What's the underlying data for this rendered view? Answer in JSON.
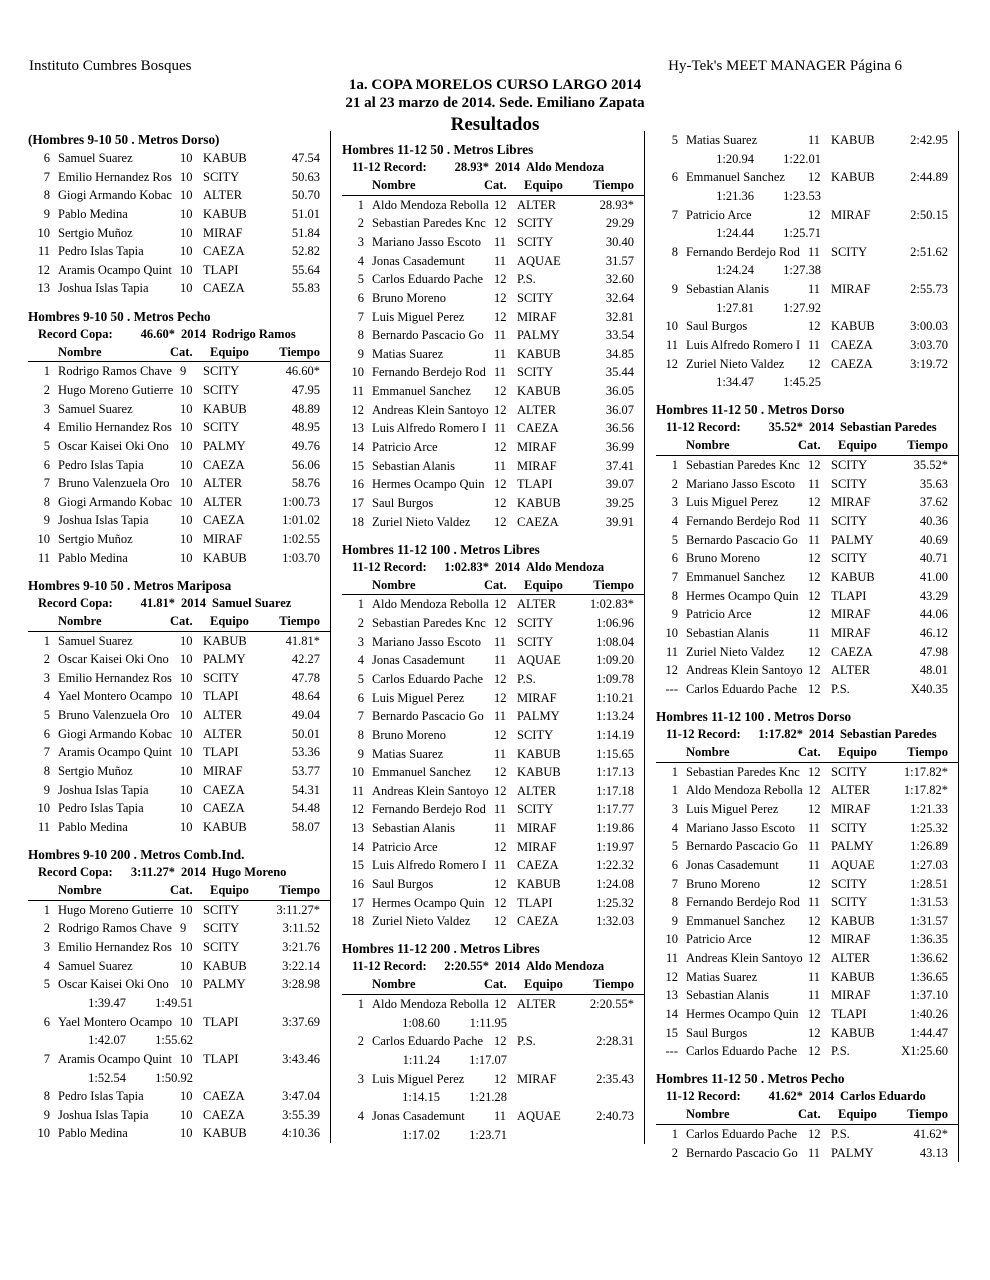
{
  "header": {
    "left": "Instituto Cumbres Bosques",
    "right": "Hy-Tek's MEET MANAGER  Página 6",
    "title": "1a. COPA MORELOS CURSO LARGO 2014",
    "subtitle": "21 al 23 marzo de 2014. Sede. Emiliano Zapata",
    "heading": "Resultados"
  },
  "table_header": [
    "Nombre",
    "Cat.",
    "Equipo",
    "Tiempo"
  ],
  "columns": [
    [
      {
        "title": "(Hombres 9-10 50 . Metros Dorso)",
        "rows": [
          [
            6,
            "Samuel Suarez",
            10,
            "KABUB",
            "47.54"
          ],
          [
            7,
            "Emilio Hernandez Ros",
            10,
            "SCITY",
            "50.63"
          ],
          [
            8,
            "Giogi Armando Kobac",
            10,
            "ALTER",
            "50.70"
          ],
          [
            9,
            "Pablo Medina",
            10,
            "KABUB",
            "51.01"
          ],
          [
            10,
            "Sertgio Muñoz",
            10,
            "MIRAF",
            "51.84"
          ],
          [
            11,
            "Pedro Islas Tapia",
            10,
            "CAEZA",
            "52.82"
          ],
          [
            12,
            "Aramis Ocampo Quint",
            10,
            "TLAPI",
            "55.64"
          ],
          [
            13,
            "Joshua Islas Tapia",
            10,
            "CAEZA",
            "55.83"
          ]
        ]
      },
      {
        "title": "Hombres 9-10 50 . Metros Pecho",
        "record": {
          "label": "Record Copa:",
          "time": "46.60*",
          "year": "2014",
          "holder": "Rodrigo Ramos"
        },
        "rows": [
          [
            1,
            "Rodrigo Ramos Chave",
            9,
            "SCITY",
            "46.60*"
          ],
          [
            2,
            "Hugo Moreno Gutierre",
            10,
            "SCITY",
            "47.95"
          ],
          [
            3,
            "Samuel Suarez",
            10,
            "KABUB",
            "48.89"
          ],
          [
            4,
            "Emilio Hernandez Ros",
            10,
            "SCITY",
            "48.95"
          ],
          [
            5,
            "Oscar Kaisei Oki Ono",
            10,
            "PALMY",
            "49.76"
          ],
          [
            6,
            "Pedro Islas Tapia",
            10,
            "CAEZA",
            "56.06"
          ],
          [
            7,
            "Bruno Valenzuela Oro",
            10,
            "ALTER",
            "58.76"
          ],
          [
            8,
            "Giogi Armando Kobac",
            10,
            "ALTER",
            "1:00.73"
          ],
          [
            9,
            "Joshua Islas Tapia",
            10,
            "CAEZA",
            "1:01.02"
          ],
          [
            10,
            "Sertgio Muñoz",
            10,
            "MIRAF",
            "1:02.55"
          ],
          [
            11,
            "Pablo Medina",
            10,
            "KABUB",
            "1:03.70"
          ]
        ]
      },
      {
        "title": "Hombres 9-10 50 . Metros Mariposa",
        "record": {
          "label": "Record Copa:",
          "time": "41.81*",
          "year": "2014",
          "holder": "Samuel Suarez"
        },
        "rows": [
          [
            1,
            "Samuel Suarez",
            10,
            "KABUB",
            "41.81*"
          ],
          [
            2,
            "Oscar Kaisei Oki Ono",
            10,
            "PALMY",
            "42.27"
          ],
          [
            3,
            "Emilio Hernandez Ros",
            10,
            "SCITY",
            "47.78"
          ],
          [
            4,
            "Yael Montero Ocampo",
            10,
            "TLAPI",
            "48.64"
          ],
          [
            5,
            "Bruno Valenzuela Oro",
            10,
            "ALTER",
            "49.04"
          ],
          [
            6,
            "Giogi Armando Kobac",
            10,
            "ALTER",
            "50.01"
          ],
          [
            7,
            "Aramis Ocampo Quint",
            10,
            "TLAPI",
            "53.36"
          ],
          [
            8,
            "Sertgio Muñoz",
            10,
            "MIRAF",
            "53.77"
          ],
          [
            9,
            "Joshua Islas Tapia",
            10,
            "CAEZA",
            "54.31"
          ],
          [
            10,
            "Pedro Islas Tapia",
            10,
            "CAEZA",
            "54.48"
          ],
          [
            11,
            "Pablo Medina",
            10,
            "KABUB",
            "58.07"
          ]
        ]
      },
      {
        "title": "Hombres 9-10 200 . Metros Comb.Ind.",
        "record": {
          "label": "Record Copa:",
          "time": "3:11.27*",
          "year": "2014",
          "holder": "Hugo Moreno"
        },
        "rows": [
          [
            1,
            "Hugo Moreno Gutierre",
            10,
            "SCITY",
            "3:11.27*"
          ],
          [
            2,
            "Rodrigo Ramos Chave",
            9,
            "SCITY",
            "3:11.52"
          ],
          [
            3,
            "Emilio Hernandez Ros",
            10,
            "SCITY",
            "3:21.76"
          ],
          [
            4,
            "Samuel Suarez",
            10,
            "KABUB",
            "3:22.14"
          ],
          [
            5,
            "Oscar Kaisei Oki Ono",
            10,
            "PALMY",
            "3:28.98",
            [
              "1:39.47",
              "1:49.51"
            ]
          ],
          [
            6,
            "Yael Montero Ocampo",
            10,
            "TLAPI",
            "3:37.69",
            [
              "1:42.07",
              "1:55.62"
            ]
          ],
          [
            7,
            "Aramis Ocampo Quint",
            10,
            "TLAPI",
            "3:43.46",
            [
              "1:52.54",
              "1:50.92"
            ]
          ],
          [
            8,
            "Pedro Islas Tapia",
            10,
            "CAEZA",
            "3:47.04"
          ],
          [
            9,
            "Joshua Islas Tapia",
            10,
            "CAEZA",
            "3:55.39"
          ],
          [
            10,
            "Pablo Medina",
            10,
            "KABUB",
            "4:10.36"
          ]
        ]
      }
    ],
    [
      {
        "title": "Hombres 11-12 50 . Metros Libres",
        "record": {
          "label": "11-12 Record:",
          "time": "28.93*",
          "year": "2014",
          "holder": "Aldo Mendoza"
        },
        "rows": [
          [
            1,
            "Aldo Mendoza Rebolla",
            12,
            "ALTER",
            "28.93*"
          ],
          [
            2,
            "Sebastian Paredes Knc",
            12,
            "SCITY",
            "29.29"
          ],
          [
            3,
            "Mariano Jasso Escoto",
            11,
            "SCITY",
            "30.40"
          ],
          [
            4,
            "Jonas Casademunt",
            11,
            "AQUAE",
            "31.57"
          ],
          [
            5,
            "Carlos Eduardo Pache",
            12,
            "P.S.",
            "32.60"
          ],
          [
            6,
            "Bruno Moreno",
            12,
            "SCITY",
            "32.64"
          ],
          [
            7,
            "Luis Miguel Perez",
            12,
            "MIRAF",
            "32.81"
          ],
          [
            8,
            "Bernardo Pascacio Go",
            11,
            "PALMY",
            "33.54"
          ],
          [
            9,
            "Matias Suarez",
            11,
            "KABUB",
            "34.85"
          ],
          [
            10,
            "Fernando Berdejo Rod",
            11,
            "SCITY",
            "35.44"
          ],
          [
            11,
            "Emmanuel Sanchez",
            12,
            "KABUB",
            "36.05"
          ],
          [
            12,
            "Andreas Klein Santoyo",
            12,
            "ALTER",
            "36.07"
          ],
          [
            13,
            "Luis Alfredo Romero I",
            11,
            "CAEZA",
            "36.56"
          ],
          [
            14,
            "Patricio Arce",
            12,
            "MIRAF",
            "36.99"
          ],
          [
            15,
            "Sebastian Alanis",
            11,
            "MIRAF",
            "37.41"
          ],
          [
            16,
            "Hermes Ocampo Quin",
            12,
            "TLAPI",
            "39.07"
          ],
          [
            17,
            "Saul Burgos",
            12,
            "KABUB",
            "39.25"
          ],
          [
            18,
            "Zuriel Nieto Valdez",
            12,
            "CAEZA",
            "39.91"
          ]
        ]
      },
      {
        "title": "Hombres 11-12 100 . Metros Libres",
        "record": {
          "label": "11-12 Record:",
          "time": "1:02.83*",
          "year": "2014",
          "holder": "Aldo Mendoza"
        },
        "rows": [
          [
            1,
            "Aldo Mendoza Rebolla",
            12,
            "ALTER",
            "1:02.83*"
          ],
          [
            2,
            "Sebastian Paredes Knc",
            12,
            "SCITY",
            "1:06.96"
          ],
          [
            3,
            "Mariano Jasso Escoto",
            11,
            "SCITY",
            "1:08.04"
          ],
          [
            4,
            "Jonas Casademunt",
            11,
            "AQUAE",
            "1:09.20"
          ],
          [
            5,
            "Carlos Eduardo Pache",
            12,
            "P.S.",
            "1:09.78"
          ],
          [
            6,
            "Luis Miguel Perez",
            12,
            "MIRAF",
            "1:10.21"
          ],
          [
            7,
            "Bernardo Pascacio Go",
            11,
            "PALMY",
            "1:13.24"
          ],
          [
            8,
            "Bruno Moreno",
            12,
            "SCITY",
            "1:14.19"
          ],
          [
            9,
            "Matias Suarez",
            11,
            "KABUB",
            "1:15.65"
          ],
          [
            10,
            "Emmanuel Sanchez",
            12,
            "KABUB",
            "1:17.13"
          ],
          [
            11,
            "Andreas Klein Santoyo",
            12,
            "ALTER",
            "1:17.18"
          ],
          [
            12,
            "Fernando Berdejo Rod",
            11,
            "SCITY",
            "1:17.77"
          ],
          [
            13,
            "Sebastian Alanis",
            11,
            "MIRAF",
            "1:19.86"
          ],
          [
            14,
            "Patricio Arce",
            12,
            "MIRAF",
            "1:19.97"
          ],
          [
            15,
            "Luis Alfredo Romero I",
            11,
            "CAEZA",
            "1:22.32"
          ],
          [
            16,
            "Saul Burgos",
            12,
            "KABUB",
            "1:24.08"
          ],
          [
            17,
            "Hermes Ocampo Quin",
            12,
            "TLAPI",
            "1:25.32"
          ],
          [
            18,
            "Zuriel Nieto Valdez",
            12,
            "CAEZA",
            "1:32.03"
          ]
        ]
      },
      {
        "title": "Hombres 11-12 200 . Metros Libres",
        "record": {
          "label": "11-12 Record:",
          "time": "2:20.55*",
          "year": "2014",
          "holder": "Aldo Mendoza"
        },
        "rows": [
          [
            1,
            "Aldo Mendoza Rebolla",
            12,
            "ALTER",
            "2:20.55*",
            [
              "1:08.60",
              "1:11.95"
            ]
          ],
          [
            2,
            "Carlos Eduardo Pache",
            12,
            "P.S.",
            "2:28.31",
            [
              "1:11.24",
              "1:17.07"
            ]
          ],
          [
            3,
            "Luis Miguel Perez",
            12,
            "MIRAF",
            "2:35.43",
            [
              "1:14.15",
              "1:21.28"
            ]
          ],
          [
            4,
            "Jonas Casademunt",
            11,
            "AQUAE",
            "2:40.73",
            [
              "1:17.02",
              "1:23.71"
            ]
          ]
        ]
      }
    ],
    [
      {
        "rows": [
          [
            5,
            "Matias Suarez",
            11,
            "KABUB",
            "2:42.95",
            [
              "1:20.94",
              "1:22.01"
            ]
          ],
          [
            6,
            "Emmanuel Sanchez",
            12,
            "KABUB",
            "2:44.89",
            [
              "1:21.36",
              "1:23.53"
            ]
          ],
          [
            7,
            "Patricio Arce",
            12,
            "MIRAF",
            "2:50.15",
            [
              "1:24.44",
              "1:25.71"
            ]
          ],
          [
            8,
            "Fernando Berdejo Rod",
            11,
            "SCITY",
            "2:51.62",
            [
              "1:24.24",
              "1:27.38"
            ]
          ],
          [
            9,
            "Sebastian Alanis",
            11,
            "MIRAF",
            "2:55.73",
            [
              "1:27.81",
              "1:27.92"
            ]
          ],
          [
            10,
            "Saul Burgos",
            12,
            "KABUB",
            "3:00.03"
          ],
          [
            11,
            "Luis Alfredo Romero I",
            11,
            "CAEZA",
            "3:03.70"
          ],
          [
            12,
            "Zuriel Nieto Valdez",
            12,
            "CAEZA",
            "3:19.72",
            [
              "1:34.47",
              "1:45.25"
            ]
          ]
        ]
      },
      {
        "title": "Hombres 11-12 50 . Metros Dorso",
        "record": {
          "label": "11-12 Record:",
          "time": "35.52*",
          "year": "2014",
          "holder": "Sebastian Paredes"
        },
        "rows": [
          [
            1,
            "Sebastian Paredes Knc",
            12,
            "SCITY",
            "35.52*"
          ],
          [
            2,
            "Mariano Jasso Escoto",
            11,
            "SCITY",
            "35.63"
          ],
          [
            3,
            "Luis Miguel Perez",
            12,
            "MIRAF",
            "37.62"
          ],
          [
            4,
            "Fernando Berdejo Rod",
            11,
            "SCITY",
            "40.36"
          ],
          [
            5,
            "Bernardo Pascacio Go",
            11,
            "PALMY",
            "40.69"
          ],
          [
            6,
            "Bruno Moreno",
            12,
            "SCITY",
            "40.71"
          ],
          [
            7,
            "Emmanuel Sanchez",
            12,
            "KABUB",
            "41.00"
          ],
          [
            8,
            "Hermes Ocampo Quin",
            12,
            "TLAPI",
            "43.29"
          ],
          [
            9,
            "Patricio Arce",
            12,
            "MIRAF",
            "44.06"
          ],
          [
            10,
            "Sebastian Alanis",
            11,
            "MIRAF",
            "46.12"
          ],
          [
            11,
            "Zuriel Nieto Valdez",
            12,
            "CAEZA",
            "47.98"
          ],
          [
            12,
            "Andreas Klein Santoyo",
            12,
            "ALTER",
            "48.01"
          ],
          [
            "---",
            "Carlos Eduardo Pache",
            12,
            "P.S.",
            "X40.35"
          ]
        ]
      },
      {
        "title": "Hombres 11-12 100 . Metros Dorso",
        "record": {
          "label": "11-12 Record:",
          "time": "1:17.82*",
          "year": "2014",
          "holder": "Sebastian Paredes"
        },
        "rows": [
          [
            1,
            "Sebastian Paredes Knc",
            12,
            "SCITY",
            "1:17.82*"
          ],
          [
            1,
            "Aldo Mendoza Rebolla",
            12,
            "ALTER",
            "1:17.82*"
          ],
          [
            3,
            "Luis Miguel Perez",
            12,
            "MIRAF",
            "1:21.33"
          ],
          [
            4,
            "Mariano Jasso Escoto",
            11,
            "SCITY",
            "1:25.32"
          ],
          [
            5,
            "Bernardo Pascacio Go",
            11,
            "PALMY",
            "1:26.89"
          ],
          [
            6,
            "Jonas Casademunt",
            11,
            "AQUAE",
            "1:27.03"
          ],
          [
            7,
            "Bruno Moreno",
            12,
            "SCITY",
            "1:28.51"
          ],
          [
            8,
            "Fernando Berdejo Rod",
            11,
            "SCITY",
            "1:31.53"
          ],
          [
            9,
            "Emmanuel Sanchez",
            12,
            "KABUB",
            "1:31.57"
          ],
          [
            10,
            "Patricio Arce",
            12,
            "MIRAF",
            "1:36.35"
          ],
          [
            11,
            "Andreas Klein Santoyo",
            12,
            "ALTER",
            "1:36.62"
          ],
          [
            12,
            "Matias Suarez",
            11,
            "KABUB",
            "1:36.65"
          ],
          [
            13,
            "Sebastian Alanis",
            11,
            "MIRAF",
            "1:37.10"
          ],
          [
            14,
            "Hermes Ocampo Quin",
            12,
            "TLAPI",
            "1:40.26"
          ],
          [
            15,
            "Saul Burgos",
            12,
            "KABUB",
            "1:44.47"
          ],
          [
            "---",
            "Carlos Eduardo Pache",
            12,
            "P.S.",
            "X1:25.60"
          ]
        ]
      },
      {
        "title": "Hombres 11-12 50 . Metros Pecho",
        "record": {
          "label": "11-12 Record:",
          "time": "41.62*",
          "year": "2014",
          "holder": "Carlos Eduardo"
        },
        "rows": [
          [
            1,
            "Carlos Eduardo Pache",
            12,
            "P.S.",
            "41.62*"
          ],
          [
            2,
            "Bernardo Pascacio Go",
            11,
            "PALMY",
            "43.13"
          ]
        ]
      }
    ]
  ]
}
